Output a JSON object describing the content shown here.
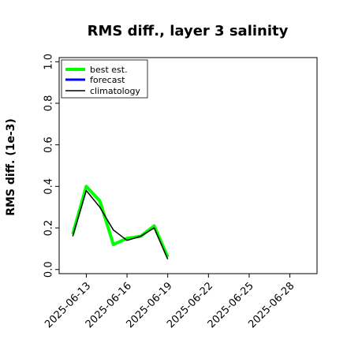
{
  "chart_data": {
    "type": "line",
    "title": "RMS diff., layer 3 salinity",
    "ylabel": "RMS diff. (1e-3)",
    "xlabel": "",
    "ylim": [
      -0.02,
      1.02
    ],
    "yticks": [
      0.0,
      0.2,
      0.4,
      0.6,
      0.8,
      1.0
    ],
    "ytick_labels": [
      "0.0",
      "0.2",
      "0.4",
      "0.6",
      "0.8",
      "1.0"
    ],
    "x_range": [
      "2025-06-11",
      "2025-06-30"
    ],
    "xticks": [
      "2025-06-13",
      "2025-06-16",
      "2025-06-19",
      "2025-06-22",
      "2025-06-25",
      "2025-06-28"
    ],
    "highlight_tick": "2025-06-19",
    "highlight_color": "#228b22",
    "grid": false,
    "legend_position": "top-left",
    "series": [
      {
        "name": "best est.",
        "color": "#00ff00",
        "width": 4,
        "x": [
          "2025-06-12",
          "2025-06-13",
          "2025-06-14",
          "2025-06-15",
          "2025-06-16",
          "2025-06-17",
          "2025-06-18",
          "2025-06-19"
        ],
        "values": [
          0.17,
          0.4,
          0.33,
          0.12,
          0.15,
          0.16,
          0.21,
          0.06
        ]
      },
      {
        "name": "forecast",
        "color": "#0000ff",
        "width": 3,
        "x": [],
        "values": []
      },
      {
        "name": "climatology",
        "color": "#000000",
        "width": 1.5,
        "x": [
          "2025-06-12",
          "2025-06-13",
          "2025-06-14",
          "2025-06-15",
          "2025-06-16",
          "2025-06-17",
          "2025-06-18",
          "2025-06-19"
        ],
        "values": [
          0.16,
          0.38,
          0.3,
          0.19,
          0.14,
          0.16,
          0.2,
          0.05
        ]
      }
    ]
  }
}
